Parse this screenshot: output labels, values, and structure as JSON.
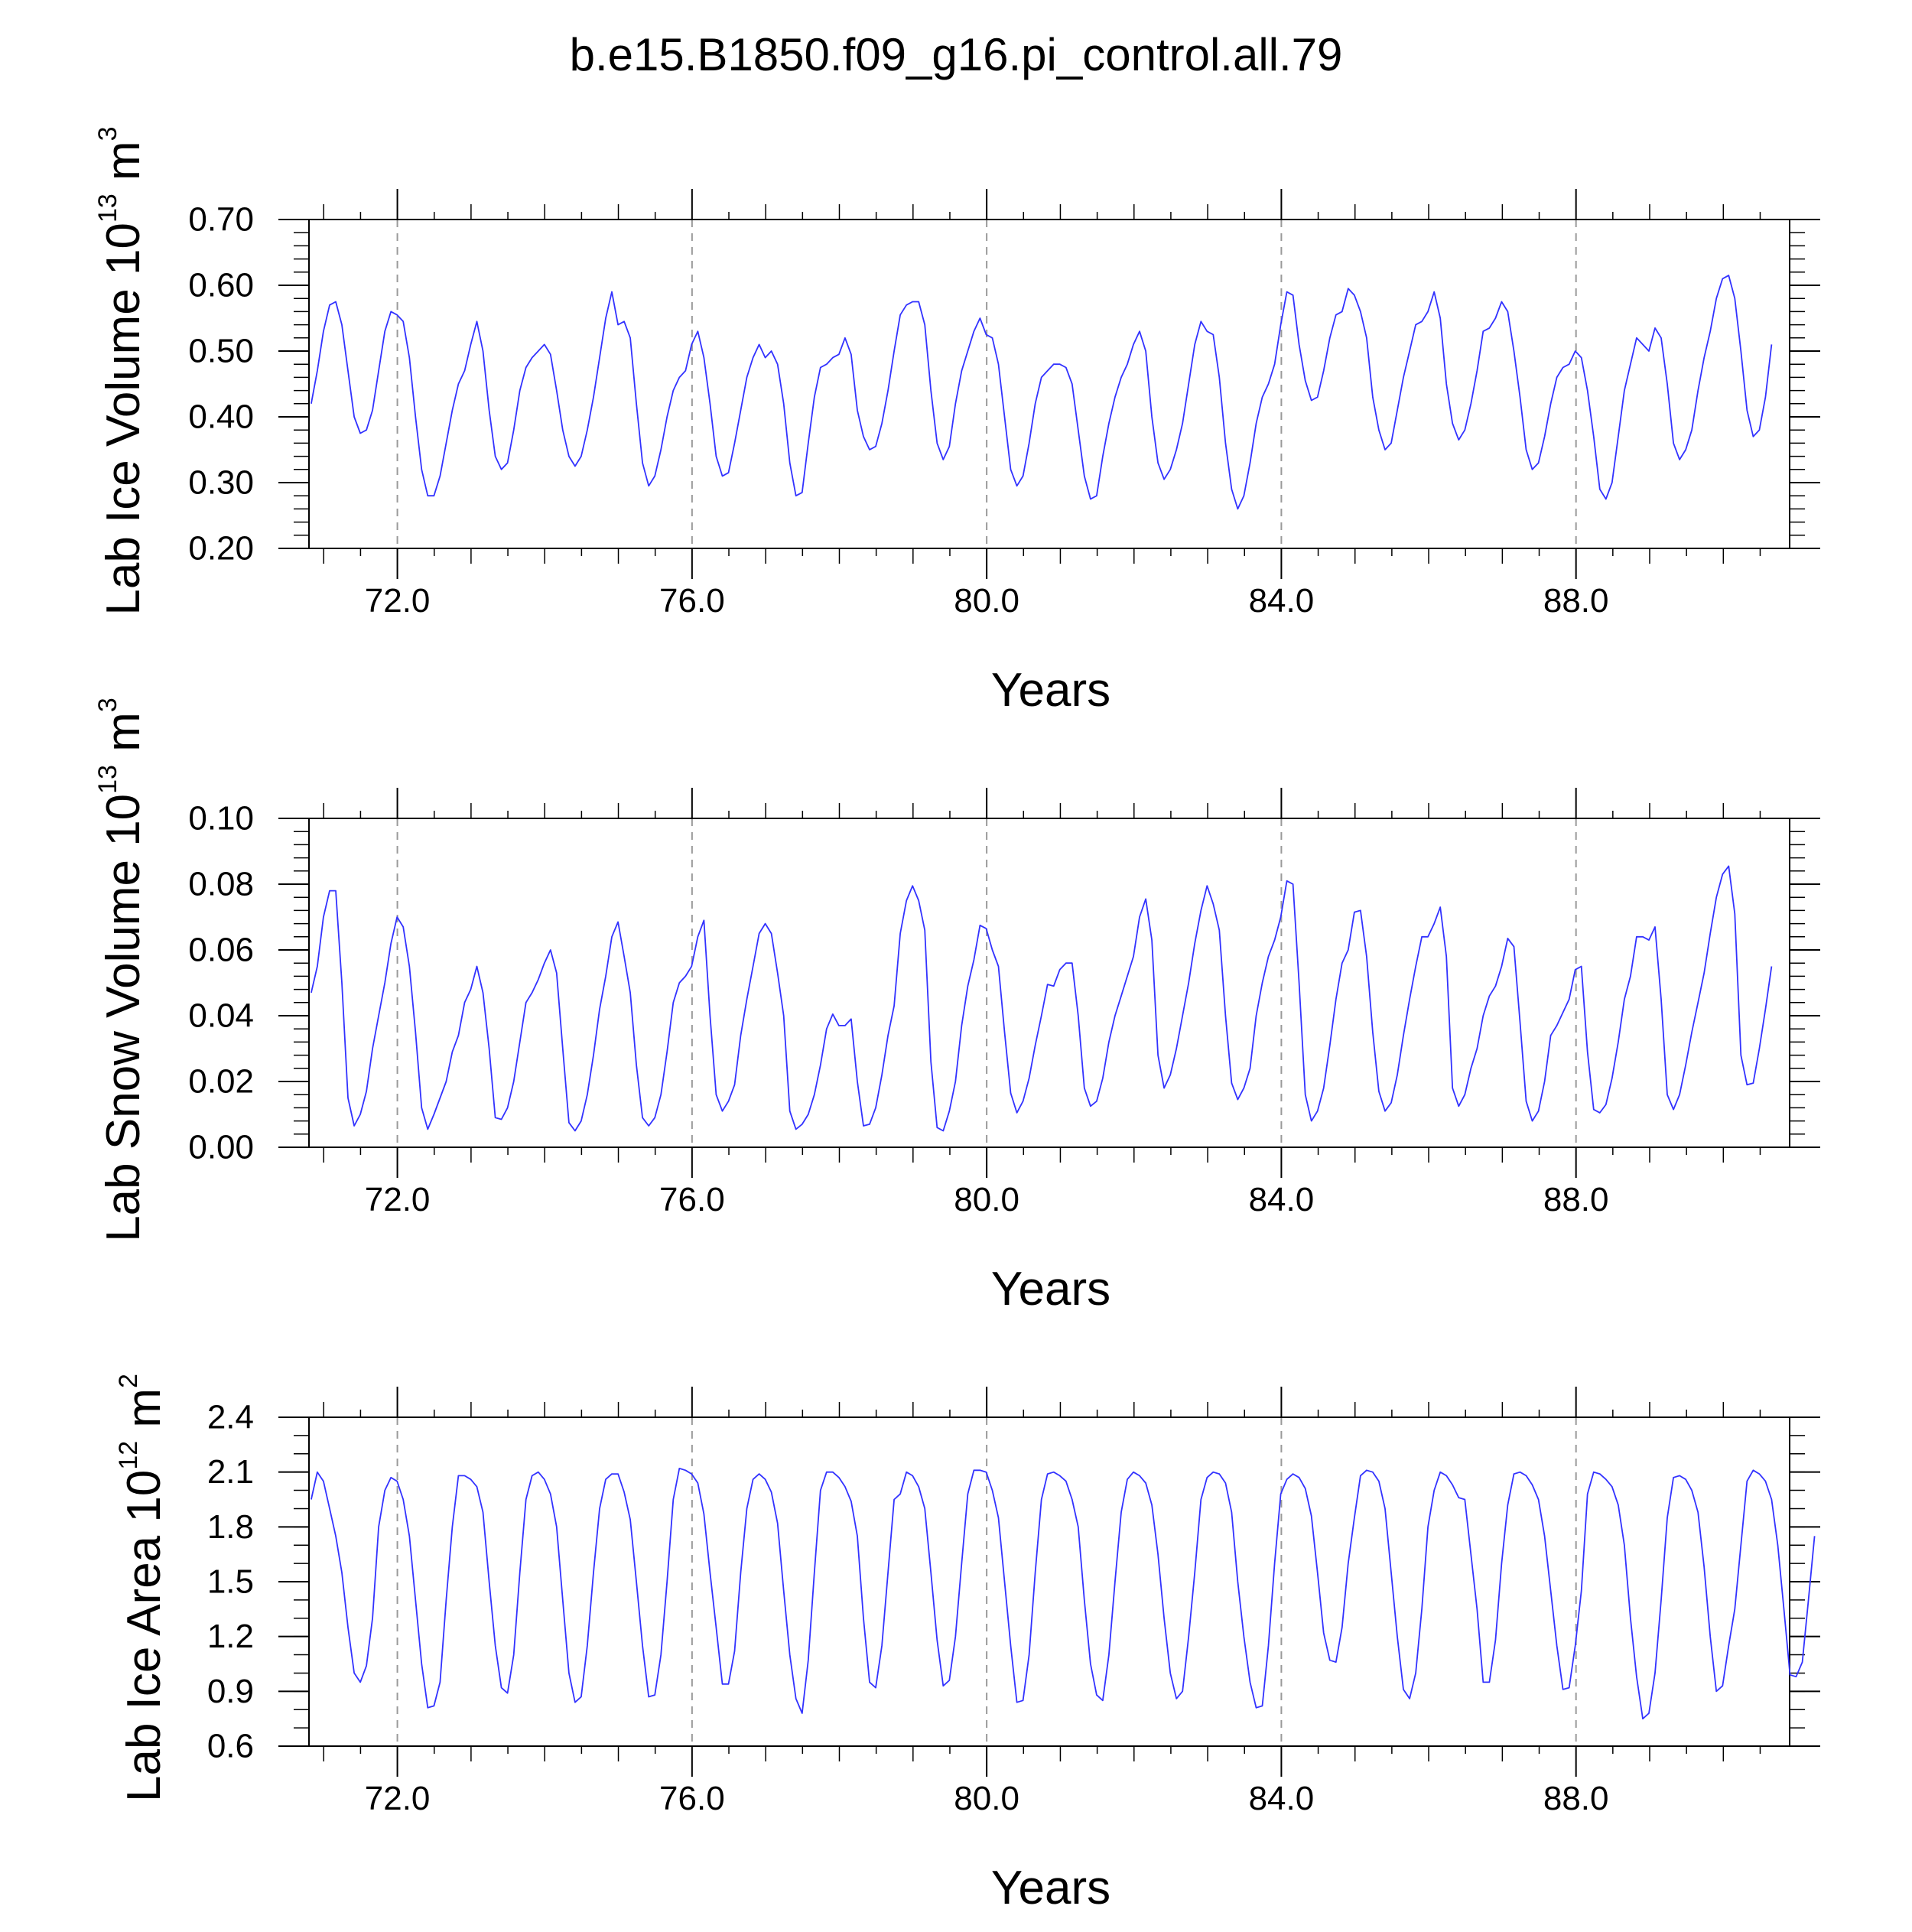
{
  "title": "b.e15.B1850.f09_g16.pi_control.all.79",
  "colors": {
    "series": "#3232ff",
    "axes": "#000000",
    "gridline": "#9a9a9a"
  },
  "chart_data": [
    {
      "type": "line",
      "ylabel": {
        "prefix": "Lab Ice Volume 10",
        "sup1": "13",
        "mid": " m",
        "sup2": "3"
      },
      "xlabel": "Years",
      "xlim": [
        70.8,
        90.9
      ],
      "ylim": [
        0.2,
        0.7
      ],
      "xtick_values": [
        72,
        76,
        80,
        84,
        88
      ],
      "xtick_labels": [
        "72.0",
        "76.0",
        "80.0",
        "84.0",
        "88.0"
      ],
      "ytick_values": [
        0.2,
        0.3,
        0.4,
        0.5,
        0.6,
        0.7
      ],
      "ytick_labels": [
        "0.20",
        "0.30",
        "0.40",
        "0.50",
        "0.60",
        "0.70"
      ],
      "yminor_step": 0.02,
      "grid": "dashed vertical at labeled x ticks",
      "x_start": 70.83,
      "x_step": 0.0833,
      "values": [
        0.42,
        0.47,
        0.53,
        0.57,
        0.575,
        0.54,
        0.47,
        0.4,
        0.375,
        0.38,
        0.41,
        0.47,
        0.53,
        0.56,
        0.555,
        0.545,
        0.49,
        0.4,
        0.32,
        0.28,
        0.28,
        0.31,
        0.36,
        0.41,
        0.45,
        0.47,
        0.51,
        0.545,
        0.5,
        0.41,
        0.34,
        0.32,
        0.33,
        0.38,
        0.44,
        0.475,
        0.49,
        0.5,
        0.51,
        0.495,
        0.44,
        0.38,
        0.34,
        0.325,
        0.34,
        0.38,
        0.43,
        0.49,
        0.55,
        0.59,
        0.54,
        0.545,
        0.52,
        0.42,
        0.33,
        0.295,
        0.31,
        0.35,
        0.4,
        0.44,
        0.46,
        0.47,
        0.51,
        0.53,
        0.49,
        0.42,
        0.34,
        0.31,
        0.315,
        0.36,
        0.41,
        0.46,
        0.49,
        0.51,
        0.49,
        0.5,
        0.48,
        0.42,
        0.33,
        0.28,
        0.285,
        0.36,
        0.43,
        0.475,
        0.48,
        0.49,
        0.495,
        0.52,
        0.495,
        0.41,
        0.37,
        0.35,
        0.355,
        0.39,
        0.44,
        0.5,
        0.555,
        0.57,
        0.575,
        0.575,
        0.54,
        0.44,
        0.36,
        0.335,
        0.355,
        0.42,
        0.47,
        0.5,
        0.53,
        0.55,
        0.525,
        0.52,
        0.48,
        0.4,
        0.32,
        0.295,
        0.31,
        0.36,
        0.42,
        0.46,
        0.47,
        0.48,
        0.48,
        0.475,
        0.45,
        0.38,
        0.31,
        0.275,
        0.28,
        0.34,
        0.39,
        0.43,
        0.46,
        0.48,
        0.51,
        0.53,
        0.5,
        0.4,
        0.33,
        0.305,
        0.32,
        0.35,
        0.39,
        0.45,
        0.51,
        0.545,
        0.53,
        0.525,
        0.46,
        0.36,
        0.29,
        0.26,
        0.28,
        0.33,
        0.39,
        0.43,
        0.45,
        0.48,
        0.54,
        0.59,
        0.585,
        0.51,
        0.455,
        0.425,
        0.43,
        0.47,
        0.52,
        0.555,
        0.56,
        0.595,
        0.585,
        0.56,
        0.52,
        0.43,
        0.38,
        0.35,
        0.36,
        0.41,
        0.46,
        0.5,
        0.54,
        0.545,
        0.56,
        0.59,
        0.55,
        0.45,
        0.39,
        0.365,
        0.38,
        0.42,
        0.47,
        0.53,
        0.535,
        0.55,
        0.575,
        0.56,
        0.5,
        0.43,
        0.35,
        0.32,
        0.33,
        0.37,
        0.42,
        0.46,
        0.475,
        0.48,
        0.5,
        0.49,
        0.44,
        0.37,
        0.29,
        0.275,
        0.3,
        0.37,
        0.44,
        0.48,
        0.52,
        0.51,
        0.5,
        0.535,
        0.52,
        0.45,
        0.36,
        0.335,
        0.35,
        0.38,
        0.44,
        0.49,
        0.53,
        0.58,
        0.61,
        0.615,
        0.58,
        0.5,
        0.41,
        0.37,
        0.38,
        0.43,
        0.51
      ]
    },
    {
      "type": "line",
      "ylabel": {
        "prefix": "Lab Snow Volume 10",
        "sup1": "13",
        "mid": " m",
        "sup2": "3"
      },
      "xlabel": "Years",
      "xlim": [
        70.8,
        90.9
      ],
      "ylim": [
        0.0,
        0.1
      ],
      "xtick_values": [
        72,
        76,
        80,
        84,
        88
      ],
      "xtick_labels": [
        "72.0",
        "76.0",
        "80.0",
        "84.0",
        "88.0"
      ],
      "ytick_values": [
        0.0,
        0.02,
        0.04,
        0.06,
        0.08,
        0.1
      ],
      "ytick_labels": [
        "0.00",
        "0.02",
        "0.04",
        "0.06",
        "0.08",
        "0.10"
      ],
      "yminor_step": 0.004,
      "grid": "dashed vertical at labeled x ticks",
      "x_start": 70.83,
      "x_step": 0.0833,
      "values": [
        0.047,
        0.055,
        0.07,
        0.078,
        0.078,
        0.05,
        0.015,
        0.0065,
        0.01,
        0.017,
        0.03,
        0.04,
        0.05,
        0.062,
        0.07,
        0.067,
        0.055,
        0.035,
        0.012,
        0.0055,
        0.01,
        0.015,
        0.02,
        0.029,
        0.034,
        0.044,
        0.048,
        0.055,
        0.047,
        0.03,
        0.009,
        0.0085,
        0.012,
        0.02,
        0.032,
        0.044,
        0.047,
        0.051,
        0.056,
        0.06,
        0.053,
        0.03,
        0.0075,
        0.005,
        0.008,
        0.016,
        0.028,
        0.042,
        0.052,
        0.064,
        0.0685,
        0.058,
        0.047,
        0.025,
        0.009,
        0.0065,
        0.009,
        0.016,
        0.029,
        0.044,
        0.05,
        0.052,
        0.055,
        0.064,
        0.069,
        0.04,
        0.016,
        0.011,
        0.014,
        0.019,
        0.034,
        0.045,
        0.055,
        0.065,
        0.068,
        0.065,
        0.053,
        0.04,
        0.011,
        0.0055,
        0.007,
        0.01,
        0.016,
        0.025,
        0.036,
        0.0405,
        0.037,
        0.037,
        0.039,
        0.02,
        0.0065,
        0.007,
        0.012,
        0.022,
        0.034,
        0.043,
        0.065,
        0.075,
        0.0795,
        0.075,
        0.066,
        0.026,
        0.006,
        0.005,
        0.011,
        0.02,
        0.037,
        0.049,
        0.057,
        0.0675,
        0.0665,
        0.06,
        0.055,
        0.035,
        0.0165,
        0.0105,
        0.014,
        0.021,
        0.031,
        0.04,
        0.0495,
        0.049,
        0.054,
        0.056,
        0.056,
        0.04,
        0.018,
        0.0125,
        0.014,
        0.021,
        0.032,
        0.04,
        0.046,
        0.052,
        0.058,
        0.07,
        0.0755,
        0.063,
        0.028,
        0.018,
        0.022,
        0.03,
        0.04,
        0.05,
        0.062,
        0.072,
        0.0795,
        0.074,
        0.066,
        0.04,
        0.0195,
        0.0145,
        0.018,
        0.024,
        0.04,
        0.05,
        0.058,
        0.063,
        0.07,
        0.081,
        0.08,
        0.05,
        0.016,
        0.008,
        0.011,
        0.018,
        0.031,
        0.045,
        0.056,
        0.06,
        0.0715,
        0.072,
        0.058,
        0.035,
        0.017,
        0.011,
        0.0135,
        0.022,
        0.034,
        0.045,
        0.055,
        0.064,
        0.064,
        0.068,
        0.073,
        0.058,
        0.018,
        0.0125,
        0.016,
        0.024,
        0.03,
        0.04,
        0.046,
        0.049,
        0.055,
        0.0635,
        0.061,
        0.038,
        0.014,
        0.008,
        0.011,
        0.02,
        0.034,
        0.037,
        0.041,
        0.045,
        0.054,
        0.055,
        0.029,
        0.0115,
        0.0105,
        0.013,
        0.021,
        0.032,
        0.045,
        0.052,
        0.064,
        0.064,
        0.063,
        0.067,
        0.045,
        0.016,
        0.0115,
        0.016,
        0.025,
        0.035,
        0.044,
        0.053,
        0.065,
        0.076,
        0.083,
        0.0855,
        0.071,
        0.028,
        0.019,
        0.0195,
        0.03,
        0.042,
        0.055
      ]
    },
    {
      "type": "line",
      "ylabel": {
        "prefix": "Lab Ice Area 10",
        "sup1": "12",
        "mid": " m",
        "sup2": "2"
      },
      "xlabel": "Years",
      "xlim": [
        70.8,
        90.9
      ],
      "ylim": [
        0.6,
        2.4
      ],
      "xtick_values": [
        72,
        76,
        80,
        84,
        88
      ],
      "xtick_labels": [
        "72.0",
        "76.0",
        "80.0",
        "84.0",
        "88.0"
      ],
      "ytick_values": [
        0.6,
        0.9,
        1.2,
        1.5,
        1.8,
        2.1,
        2.4
      ],
      "ytick_labels": [
        "0.6",
        "0.9",
        "1.2",
        "1.5",
        "1.8",
        "2.1",
        "2.4"
      ],
      "yminor_step": 0.1,
      "grid": "dashed vertical at labeled x ticks",
      "x_start": 70.83,
      "x_step": 0.0833,
      "values": [
        1.95,
        2.1,
        2.05,
        1.9,
        1.75,
        1.55,
        1.25,
        1.0,
        0.95,
        1.04,
        1.3,
        1.8,
        2.0,
        2.07,
        2.05,
        1.95,
        1.75,
        1.4,
        1.05,
        0.81,
        0.82,
        0.95,
        1.4,
        1.8,
        2.08,
        2.08,
        2.06,
        2.02,
        1.88,
        1.5,
        1.15,
        0.92,
        0.89,
        1.1,
        1.55,
        1.95,
        2.08,
        2.1,
        2.06,
        1.98,
        1.8,
        1.4,
        1.0,
        0.84,
        0.87,
        1.15,
        1.55,
        1.9,
        2.06,
        2.09,
        2.09,
        1.99,
        1.84,
        1.5,
        1.15,
        0.87,
        0.88,
        1.1,
        1.5,
        1.95,
        2.12,
        2.11,
        2.09,
        2.04,
        1.87,
        1.55,
        1.25,
        0.94,
        0.94,
        1.12,
        1.55,
        1.9,
        2.06,
        2.09,
        2.06,
        1.99,
        1.82,
        1.45,
        1.1,
        0.86,
        0.78,
        1.07,
        1.55,
        2.0,
        2.1,
        2.1,
        2.07,
        2.02,
        1.94,
        1.75,
        1.3,
        0.95,
        0.92,
        1.15,
        1.55,
        1.95,
        1.98,
        2.1,
        2.08,
        2.02,
        1.9,
        1.55,
        1.18,
        0.93,
        0.96,
        1.2,
        1.6,
        1.98,
        2.11,
        2.11,
        2.1,
        2.0,
        1.85,
        1.5,
        1.15,
        0.84,
        0.85,
        1.1,
        1.55,
        1.95,
        2.09,
        2.1,
        2.08,
        2.05,
        1.95,
        1.8,
        1.4,
        1.05,
        0.88,
        0.85,
        1.1,
        1.5,
        1.88,
        2.06,
        2.1,
        2.08,
        2.04,
        1.92,
        1.65,
        1.3,
        1.0,
        0.86,
        0.9,
        1.2,
        1.55,
        1.95,
        2.07,
        2.1,
        2.09,
        2.04,
        1.88,
        1.5,
        1.2,
        0.95,
        0.81,
        0.82,
        1.15,
        1.6,
        1.98,
        2.06,
        2.09,
        2.07,
        2.01,
        1.86,
        1.55,
        1.22,
        1.07,
        1.06,
        1.25,
        1.6,
        1.85,
        2.08,
        2.11,
        2.1,
        2.05,
        1.9,
        1.55,
        1.2,
        0.91,
        0.86,
        1.0,
        1.35,
        1.8,
        2.0,
        2.1,
        2.08,
        2.03,
        1.96,
        1.95,
        1.65,
        1.35,
        0.95,
        0.95,
        1.18,
        1.6,
        1.92,
        2.09,
        2.1,
        2.08,
        2.03,
        1.95,
        1.75,
        1.45,
        1.15,
        0.91,
        0.92,
        1.15,
        1.45,
        1.98,
        2.1,
        2.09,
        2.06,
        2.02,
        1.92,
        1.7,
        1.3,
        0.98,
        0.75,
        0.78,
        1.0,
        1.4,
        1.85,
        2.07,
        2.08,
        2.06,
        2.0,
        1.88,
        1.58,
        1.2,
        0.9,
        0.93,
        1.15,
        1.35,
        1.7,
        2.05,
        2.11,
        2.09,
        2.05,
        1.95,
        1.7,
        1.35,
        0.99,
        0.98,
        1.06,
        1.4,
        1.75
      ]
    }
  ]
}
